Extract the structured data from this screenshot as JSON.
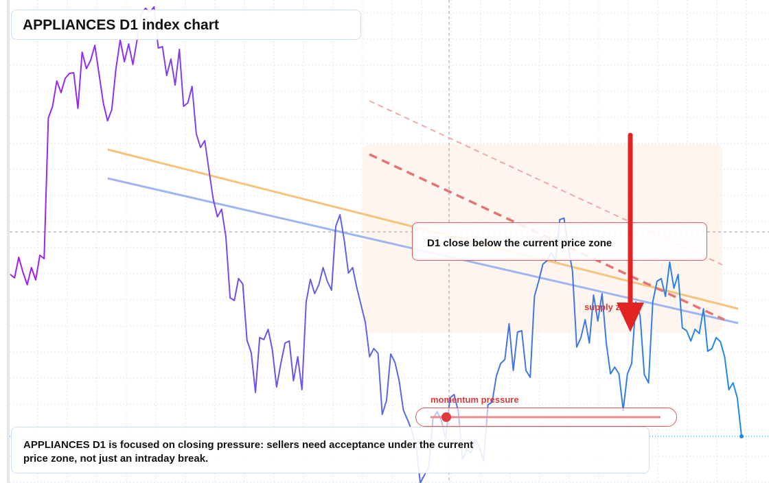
{
  "chart_data": {
    "type": "line",
    "title": "APPLIANCES D1 index chart",
    "annotations": {
      "callout": "D1 close below the current price zone",
      "zone": "supply zone",
      "momentum": "momentum pressure",
      "caption": "APPLIANCES D1 is focused on closing pressure: sellers need acceptance under the current price zone, not just an intraday break."
    },
    "series": [
      {
        "colors": [
          "#a21cf0",
          "#5a66e6",
          "#1e88e5"
        ],
        "values": [
          30.4,
          29.9,
          32.9,
          30.7,
          28.9,
          31.4,
          29.6,
          33.2,
          32.7,
          53.2,
          54.9,
          58.6,
          56.9,
          59,
          59.7,
          59.8,
          54.6,
          62.8,
          60.4,
          61.6,
          63.8,
          59.6,
          55.4,
          52.8,
          54.4,
          60.4,
          64.6,
          61.4,
          64,
          61,
          64.6,
          68.4,
          69.2,
          68.6,
          69.4,
          63.4,
          63.6,
          59.4,
          61.8,
          58,
          63.2,
          54.9,
          55.4,
          57.8,
          50.9,
          48.9,
          49.9,
          45.6,
          41.4,
          38.8,
          39.9,
          35.9,
          27,
          26.6,
          29.8,
          29,
          20.8,
          19,
          13.2,
          21.2,
          20.9,
          22.4,
          19.4,
          14,
          17.4,
          20.4,
          20.7,
          14.9,
          18.4,
          13.6,
          26.4,
          29.7,
          27.6,
          28.9,
          31.4,
          29.4,
          28.1,
          37.4,
          39.1,
          35.4,
          30.6,
          31.4,
          28.4,
          25.9,
          23.4,
          18.4,
          19.6,
          18.9,
          10,
          12,
          18.8,
          17.6,
          14.9,
          10.6,
          9.2,
          7.6,
          5.4,
          0,
          1.2,
          2.4,
          9.4,
          10.4,
          9.1,
          6.4,
          12.4,
          12.9,
          10.4,
          3.4,
          4.9,
          4.4,
          6.4,
          5.2,
          3.2,
          11.4,
          11.8,
          15.6,
          17.4,
          18,
          23.2,
          16.4,
          22,
          22.2,
          16.4,
          15.4,
          27.2,
          29.4,
          31.9,
          32.4,
          33.6,
          32.4,
          38.4,
          38.6,
          34.4,
          30.9,
          19.8,
          21.2,
          23.8,
          20.4,
          27.4,
          23.6,
          27.6,
          20.4,
          15.9,
          16.9,
          15.9,
          10.6,
          15.9,
          17.4,
          26.4,
          24.4,
          15.8,
          14.6,
          26.4,
          29.4,
          29.8,
          27.2,
          32.2,
          28.4,
          30.4,
          22.6,
          22.2,
          20.7,
          22.4,
          21.8,
          25.4,
          19.2,
          19.6,
          21.2,
          20.6,
          18.4,
          13.6,
          14.6,
          12.4,
          6.8
        ]
      }
    ],
    "ylim": [
      0,
      70.4
    ],
    "grid": true
  }
}
